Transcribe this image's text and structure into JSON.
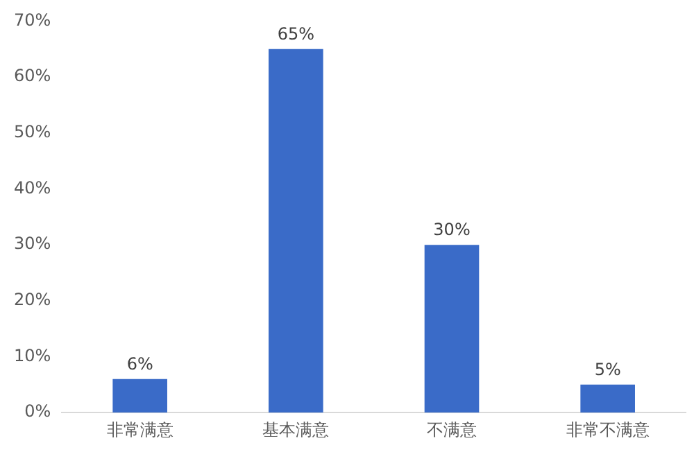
{
  "chart_data": {
    "type": "bar",
    "categories": [
      "非常满意",
      "基本满意",
      "不满意",
      "非常不满意"
    ],
    "values": [
      6,
      65,
      30,
      5
    ],
    "value_labels": [
      "6%",
      "65%",
      "30%",
      "5%"
    ],
    "color": "#3a6bc8",
    "ylim": [
      0,
      70
    ],
    "yticks": [
      {
        "value": 0,
        "label": "0%"
      },
      {
        "value": 10,
        "label": "10%"
      },
      {
        "value": 20,
        "label": "20%"
      },
      {
        "value": 30,
        "label": "30%"
      },
      {
        "value": 40,
        "label": "40%"
      },
      {
        "value": 50,
        "label": "50%"
      },
      {
        "value": 60,
        "label": "60%"
      },
      {
        "value": 70,
        "label": "70%"
      }
    ],
    "grid": false,
    "legend": false
  }
}
